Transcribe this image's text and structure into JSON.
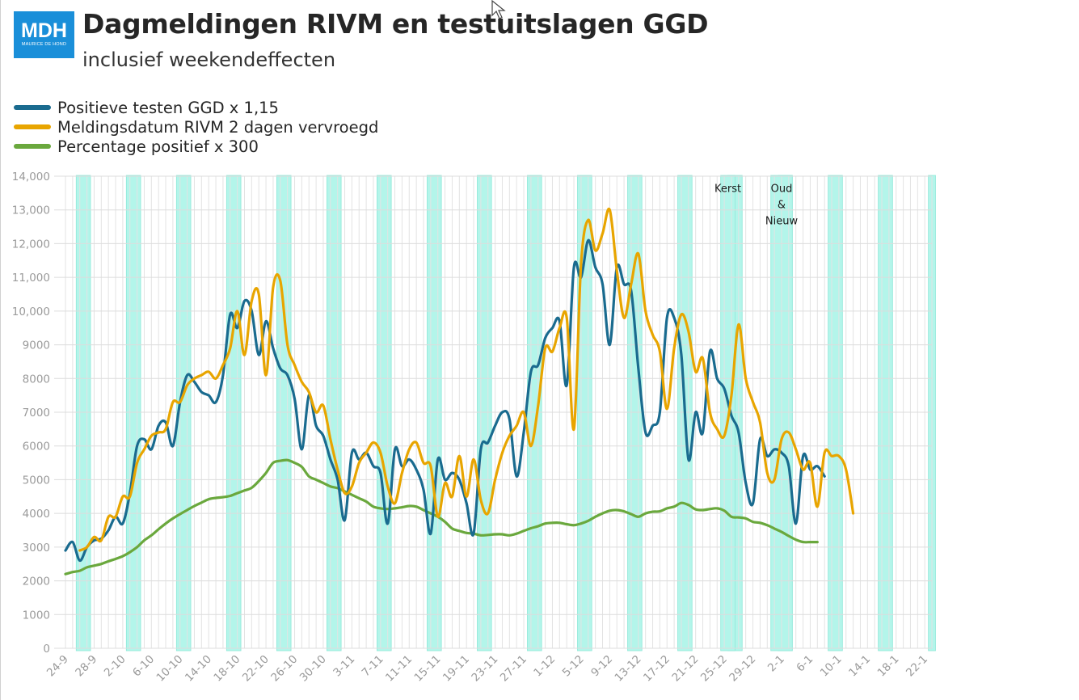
{
  "logo": {
    "text": "MDH",
    "subtext": "MAURICE DE HOND"
  },
  "title": "Dagmeldingen RIVM en testuitslagen GGD",
  "subtitle": "inclusief weekendeffecten",
  "chart_data": {
    "type": "line",
    "title": "Dagmeldingen RIVM en testuitslagen GGD",
    "subtitle": "inclusief weekendeffecten",
    "xlabel": "",
    "ylabel": "",
    "ylim": [
      0,
      14000
    ],
    "yticks": [
      0,
      1000,
      2000,
      3000,
      4000,
      5000,
      6000,
      7000,
      8000,
      9000,
      10000,
      11000,
      12000,
      13000,
      14000
    ],
    "ytick_labels": [
      "0",
      "1000",
      "2000",
      "3000",
      "4000",
      "5000",
      "6000",
      "7000",
      "8000",
      "9000",
      "10,000",
      "11,000",
      "12,000",
      "13,000",
      "14,000"
    ],
    "x_start_label": "24-9",
    "n_days": 122,
    "x_tick_labels": [
      "24-9",
      "28-9",
      "2-10",
      "6-10",
      "10-10",
      "14-10",
      "18-10",
      "22-10",
      "26-10",
      "30-10",
      "3-11",
      "7-11",
      "11-11",
      "15-11",
      "19-11",
      "23-11",
      "27-11",
      "1-12",
      "5-12",
      "9-12",
      "13-12",
      "17-12",
      "21-12",
      "25-12",
      "29-12",
      "2-1",
      "6-1",
      "10-1",
      "14-1",
      "18-1",
      "22-1"
    ],
    "x_tick_every": 4,
    "weekend_shading": {
      "first_saturday_index": 2,
      "period": 7,
      "length": 2,
      "color": "#b3f5ea"
    },
    "special_shading": [
      {
        "start_index": 92,
        "end_index": 93
      },
      {
        "start_index": 99,
        "end_index": 101
      }
    ],
    "grid": true,
    "legend_position": "top-left",
    "annotations": [
      {
        "text": "Kerst",
        "x_index": 92.5,
        "y": 13650
      },
      {
        "text": "Oud",
        "x_index": 100,
        "y": 13650
      },
      {
        "text": "&",
        "x_index": 100,
        "y": 13170
      },
      {
        "text": "Nieuw",
        "x_index": 100,
        "y": 12690
      }
    ],
    "series": [
      {
        "name": "Positieve testen GGD x 1,15",
        "color": "#1a6b8f",
        "x_offset": 0,
        "values": [
          2900,
          3150,
          2600,
          3000,
          3200,
          3250,
          3500,
          3900,
          3700,
          4600,
          6000,
          6200,
          5900,
          6600,
          6700,
          6000,
          7300,
          8100,
          7900,
          7600,
          7500,
          7300,
          8100,
          9900,
          9500,
          10300,
          10000,
          8700,
          9700,
          8900,
          8300,
          8100,
          7400,
          5900,
          7500,
          6600,
          6300,
          5600,
          5000,
          3800,
          5800,
          5600,
          5800,
          5400,
          5200,
          3700,
          5900,
          5400,
          5600,
          5300,
          4700,
          3400,
          5600,
          5000,
          5200,
          5000,
          4300,
          3400,
          5900,
          6100,
          6600,
          7000,
          6800,
          5100,
          6400,
          8200,
          8400,
          9200,
          9500,
          9700,
          7800,
          11300,
          11000,
          12100,
          11300,
          10800,
          9000,
          11300,
          10800,
          10600,
          8300,
          6400,
          6600,
          7000,
          9800,
          9800,
          8700,
          5600,
          7000,
          6400,
          8800,
          8000,
          7700,
          6900,
          6400,
          4900,
          4300,
          6200,
          5700,
          5900,
          5800,
          5400,
          3700,
          5700,
          5300,
          5400,
          5100
        ]
      },
      {
        "name": "Meldingsdatum RIVM 2 dagen vervroegd",
        "color": "#e8a500",
        "x_offset": 2,
        "values": [
          2900,
          3000,
          3300,
          3200,
          3900,
          3900,
          4500,
          4500,
          5500,
          5900,
          6300,
          6400,
          6500,
          7300,
          7300,
          7800,
          8000,
          8100,
          8200,
          8000,
          8400,
          8900,
          10000,
          8700,
          10300,
          10500,
          8100,
          10700,
          10900,
          9000,
          8400,
          7900,
          7600,
          7000,
          7200,
          6200,
          5300,
          4600,
          4800,
          5500,
          5800,
          6100,
          5800,
          4800,
          4300,
          5200,
          5900,
          6100,
          5500,
          5400,
          3900,
          4900,
          4500,
          5700,
          4500,
          5600,
          4400,
          4000,
          5000,
          5800,
          6300,
          6600,
          7000,
          6000,
          7200,
          8900,
          8800,
          9500,
          9800,
          6500,
          11400,
          12700,
          11800,
          12300,
          13000,
          11200,
          9800,
          10800,
          11700,
          10000,
          9300,
          8800,
          7100,
          8900,
          9900,
          9400,
          8200,
          8600,
          7000,
          6500,
          6300,
          7500,
          9600,
          8000,
          7300,
          6700,
          5200,
          5000,
          6200,
          6400,
          5900,
          5300,
          5500,
          4200,
          5800,
          5700,
          5700,
          5300,
          4000
        ]
      },
      {
        "name": "Percentage positief x 300",
        "color": "#6aa83d",
        "x_offset": 0,
        "values": [
          2200,
          2260,
          2300,
          2400,
          2450,
          2500,
          2580,
          2650,
          2730,
          2850,
          3000,
          3200,
          3350,
          3530,
          3700,
          3850,
          3980,
          4100,
          4220,
          4320,
          4420,
          4460,
          4480,
          4520,
          4600,
          4680,
          4760,
          4960,
          5200,
          5500,
          5560,
          5580,
          5500,
          5380,
          5100,
          5000,
          4900,
          4800,
          4750,
          4650,
          4550,
          4450,
          4350,
          4200,
          4150,
          4130,
          4150,
          4180,
          4220,
          4200,
          4100,
          4000,
          3900,
          3750,
          3550,
          3480,
          3420,
          3400,
          3350,
          3360,
          3380,
          3380,
          3350,
          3400,
          3480,
          3560,
          3620,
          3700,
          3720,
          3720,
          3680,
          3650,
          3700,
          3780,
          3900,
          4000,
          4080,
          4100,
          4060,
          3980,
          3900,
          4000,
          4050,
          4060,
          4150,
          4200,
          4310,
          4250,
          4120,
          4100,
          4130,
          4150,
          4080,
          3900,
          3880,
          3850,
          3750,
          3720,
          3650,
          3550,
          3450,
          3330,
          3220,
          3150,
          3150,
          3150
        ]
      }
    ]
  }
}
